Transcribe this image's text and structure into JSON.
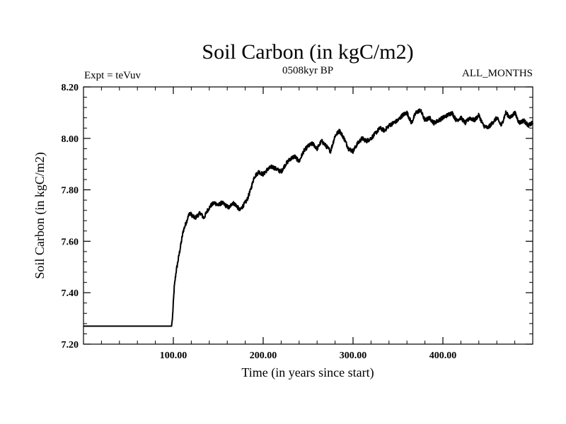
{
  "chart_data": {
    "type": "line",
    "title": "Soil Carbon (in kgC/m2)",
    "subtitle_left": "Expt = teVuv",
    "subtitle_center": "0508kyr BP",
    "subtitle_right": "ALL_MONTHS",
    "xlabel": "Time (in years since start)",
    "ylabel": "Soil Carbon (in kgC/m2)",
    "xlim": [
      0,
      500
    ],
    "ylim": [
      7.2,
      8.2
    ],
    "x_ticks": [
      100,
      200,
      300,
      400
    ],
    "x_tick_labels": [
      "100.00",
      "200.00",
      "300.00",
      "400.00"
    ],
    "y_ticks": [
      7.2,
      7.4,
      7.6,
      7.8,
      8.0,
      8.2
    ],
    "y_tick_labels": [
      "7.20",
      "7.40",
      "7.60",
      "7.80",
      "8.00",
      "8.20"
    ],
    "grid": false,
    "series": [
      {
        "color": "#000000",
        "x": [
          0,
          98,
          99,
          101,
          103,
          105,
          107,
          109,
          111,
          113,
          115,
          118,
          121,
          124,
          127,
          130,
          134,
          138,
          142,
          146,
          150,
          154,
          158,
          162,
          166,
          170,
          174,
          178,
          182,
          186,
          190,
          195,
          200,
          205,
          210,
          215,
          220,
          225,
          230,
          235,
          240,
          245,
          250,
          255,
          260,
          265,
          270,
          275,
          280,
          285,
          290,
          295,
          300,
          305,
          310,
          315,
          320,
          325,
          330,
          335,
          340,
          345,
          350,
          355,
          360,
          365,
          370,
          375,
          380,
          385,
          390,
          395,
          400,
          405,
          410,
          415,
          420,
          425,
          430,
          435,
          440,
          445,
          450,
          455,
          460,
          465,
          470,
          475,
          480,
          485,
          490,
          495,
          500
        ],
        "y": [
          7.27,
          7.27,
          7.3,
          7.42,
          7.48,
          7.52,
          7.56,
          7.6,
          7.64,
          7.66,
          7.68,
          7.71,
          7.7,
          7.69,
          7.7,
          7.71,
          7.69,
          7.72,
          7.74,
          7.75,
          7.74,
          7.75,
          7.74,
          7.73,
          7.75,
          7.74,
          7.72,
          7.74,
          7.76,
          7.8,
          7.85,
          7.87,
          7.86,
          7.88,
          7.89,
          7.88,
          7.87,
          7.9,
          7.92,
          7.93,
          7.91,
          7.95,
          7.97,
          7.98,
          7.96,
          7.99,
          7.97,
          7.95,
          8.01,
          8.03,
          8.0,
          7.96,
          7.95,
          7.98,
          8.0,
          7.99,
          8.0,
          8.02,
          8.04,
          8.03,
          8.05,
          8.06,
          8.07,
          8.09,
          8.1,
          8.06,
          8.1,
          8.11,
          8.07,
          8.08,
          8.06,
          8.07,
          8.08,
          8.09,
          8.1,
          8.07,
          8.08,
          8.06,
          8.08,
          8.07,
          8.09,
          8.05,
          8.04,
          8.06,
          8.08,
          8.05,
          8.1,
          8.08,
          8.1,
          8.06,
          8.07,
          8.05,
          8.06
        ],
        "noise_amplitude": 0.008
      }
    ]
  }
}
